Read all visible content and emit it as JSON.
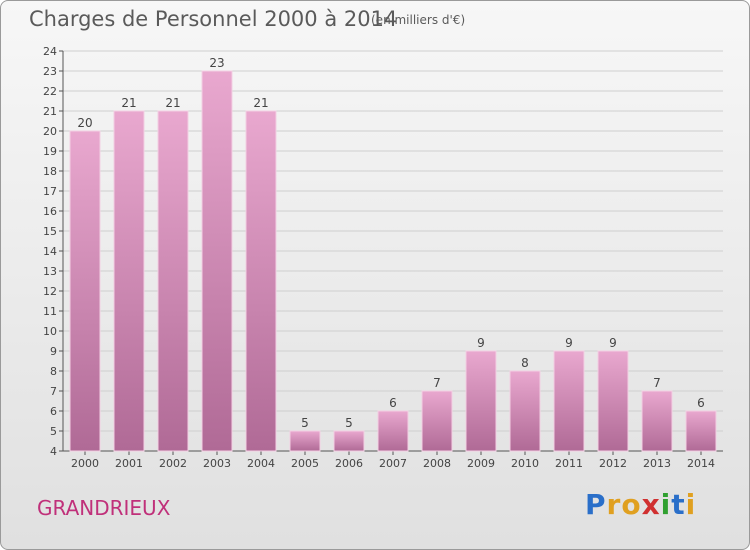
{
  "header": {
    "title": "Charges de Personnel 2000 à 2014",
    "subtitle": "(en milliers d'€)"
  },
  "footer": {
    "place": "GRANDRIEUX",
    "logo_letters": [
      "P",
      "r",
      "o",
      "x",
      "i",
      "t",
      "i"
    ],
    "logo_colors": [
      "#2a6fc9",
      "#e0a020",
      "#e0a020",
      "#d03030",
      "#30a030",
      "#2a6fc9",
      "#e0a020"
    ]
  },
  "chart_data": {
    "type": "bar",
    "title": "Charges de Personnel 2000 à 2014",
    "subtitle": "(en milliers d'€)",
    "xlabel": "",
    "ylabel": "",
    "categories": [
      "2000",
      "2001",
      "2002",
      "2003",
      "2004",
      "2005",
      "2006",
      "2007",
      "2008",
      "2009",
      "2010",
      "2011",
      "2012",
      "2013",
      "2014"
    ],
    "values": [
      20,
      21,
      21,
      23,
      21,
      5,
      5,
      6,
      7,
      9,
      8,
      9,
      9,
      7,
      6
    ],
    "ylim": [
      4,
      24
    ],
    "yticks": [
      4,
      5,
      6,
      7,
      8,
      9,
      10,
      11,
      12,
      13,
      14,
      15,
      16,
      17,
      18,
      19,
      20,
      21,
      22,
      23,
      24
    ],
    "grid": true,
    "bar_color_top": "#e9a8cf",
    "bar_color_bottom": "#b06a96",
    "grid_color": "#cfcfcf"
  }
}
